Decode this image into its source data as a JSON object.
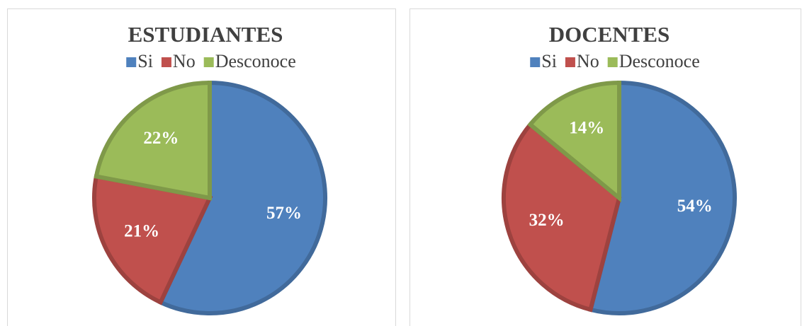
{
  "chart_data": [
    {
      "type": "pie",
      "title": "ESTUDIANTES",
      "categories": [
        "Si",
        "No",
        "Desconoce"
      ],
      "values": [
        57,
        21,
        22
      ],
      "value_labels": [
        "57%",
        "21%",
        "22%"
      ],
      "colors": [
        "#4f81bd",
        "#c0504d",
        "#9bbb59"
      ],
      "legend": "top"
    },
    {
      "type": "pie",
      "title": "DOCENTES",
      "categories": [
        "Si",
        "No",
        "Desconoce"
      ],
      "values": [
        54,
        32,
        14
      ],
      "value_labels": [
        "54%",
        "32%",
        "14%"
      ],
      "colors": [
        "#4f81bd",
        "#c0504d",
        "#9bbb59"
      ],
      "legend": "top"
    }
  ]
}
